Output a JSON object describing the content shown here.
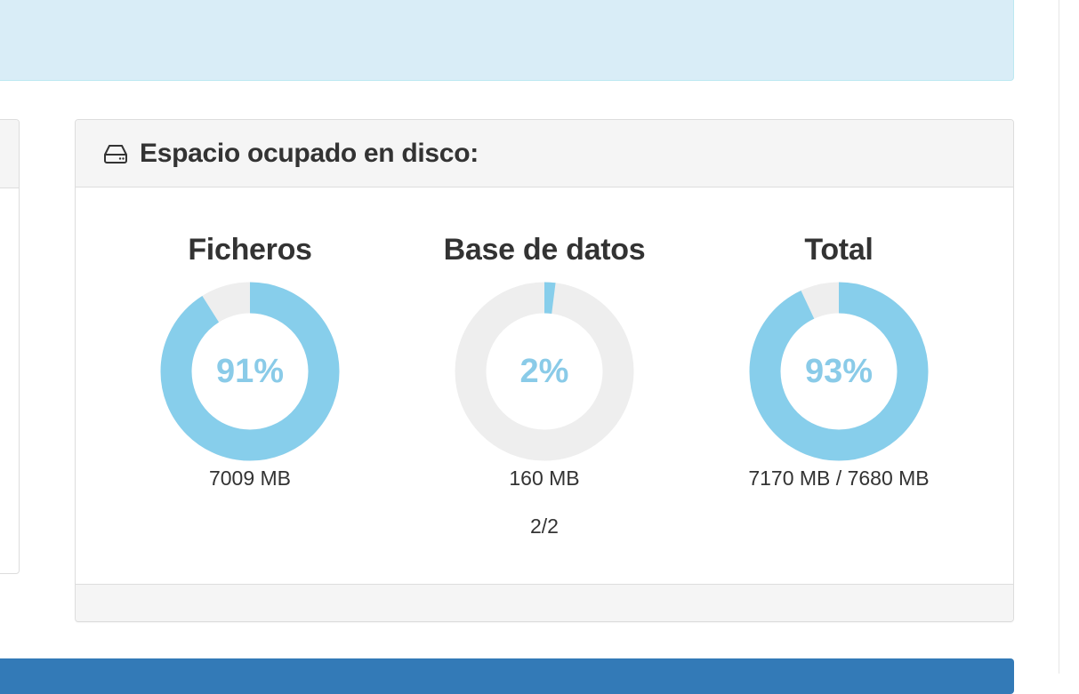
{
  "panel": {
    "title": "Espacio ocupado en disco:",
    "icon": "hdd-icon"
  },
  "gauges": [
    {
      "title": "Ficheros",
      "percent": 91,
      "percent_label": "91%",
      "size": "7009 MB"
    },
    {
      "title": "Base de datos",
      "percent": 2,
      "percent_label": "2%",
      "size": "160 MB",
      "extra": "2/2"
    },
    {
      "title": "Total",
      "percent": 93,
      "percent_label": "93%",
      "size": "7170 MB / 7680 MB"
    }
  ],
  "colors": {
    "filled": "#87ceeb",
    "track": "#eeeeee",
    "alert_bg": "#d9edf7",
    "bar": "#337ab7"
  }
}
